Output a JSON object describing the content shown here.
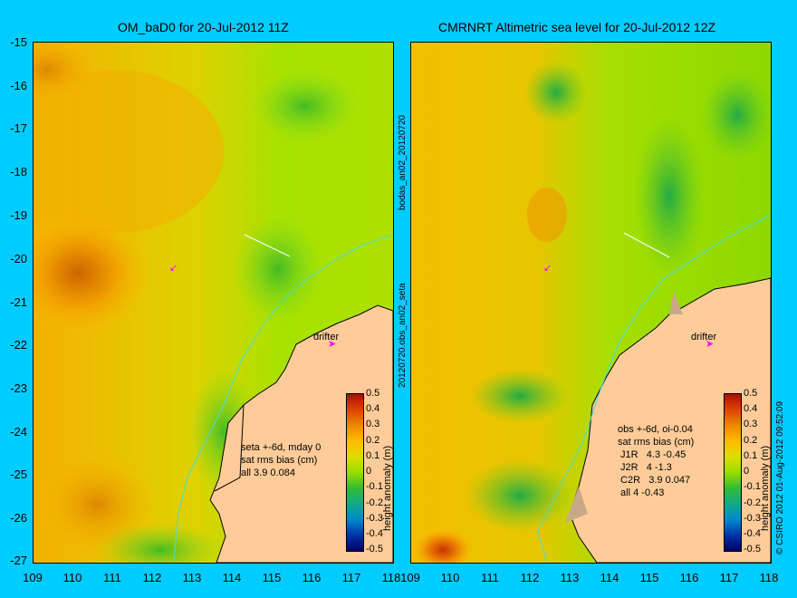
{
  "left_panel": {
    "title": "OM_baD0 for 20-Jul-2012 11Z",
    "stats": "seta +-6d, mday 0\nsat rms bias (cm)\nall 3.9 0.084",
    "drifter_label": "drifter"
  },
  "right_panel": {
    "title": "CMRNRT Altimetric sea level  for 20-Jul-2012 12Z",
    "stats": "obs +-6d, oi-0.04\nsat rms bias (cm)\n J1R   4.3 -0.45\n J2R   4 -1.3\n C2R   3.9 0.047\n all 4 -0.43",
    "drifter_label": "drifter"
  },
  "y_ticks": [
    "-15",
    "-16",
    "-17",
    "-18",
    "-19",
    "-20",
    "-21",
    "-22",
    "-23",
    "-24",
    "-25",
    "-26",
    "-27"
  ],
  "x_ticks": [
    "109",
    "110",
    "111",
    "112",
    "113",
    "114",
    "115",
    "116",
    "117",
    "118"
  ],
  "middle_vertical_label": "20120720.obs_an02_seta",
  "middle_vertical_label_top": "bodas_an02_20120720",
  "right_vertical_label": "© CSIRO 2012   01-Aug-2012 09:52:09",
  "colorbar": {
    "ticks": [
      "0.5",
      "0.4",
      "0.3",
      "0.2",
      "0.1",
      "0",
      "-0.1",
      "-0.2",
      "-0.3",
      "-0.4",
      "-0.5"
    ],
    "label": "height anomaly (m)"
  },
  "colors": {
    "background": "#00ccff",
    "land": "#ffcc99",
    "coastline": "#000000",
    "river": "#44dddd",
    "drifter": "#ff00ff"
  }
}
